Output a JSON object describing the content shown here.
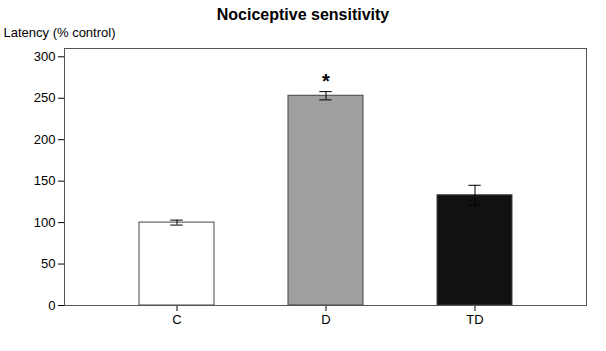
{
  "chart_data": {
    "type": "bar",
    "title": "Nociceptive sensitivity",
    "categories": [
      "C",
      "D",
      "TD"
    ],
    "values": [
      100,
      253,
      133
    ],
    "errors": [
      3,
      5,
      12
    ],
    "colors": [
      "#ffffff",
      "#a0a0a0",
      "#111111"
    ],
    "ylabel": "Latency (% control)",
    "ylim": [
      0,
      310
    ],
    "yticks": [
      0,
      50,
      100,
      150,
      200,
      250,
      300
    ],
    "annotations": [
      {
        "text": "*",
        "category": "D"
      }
    ],
    "grid": false
  }
}
